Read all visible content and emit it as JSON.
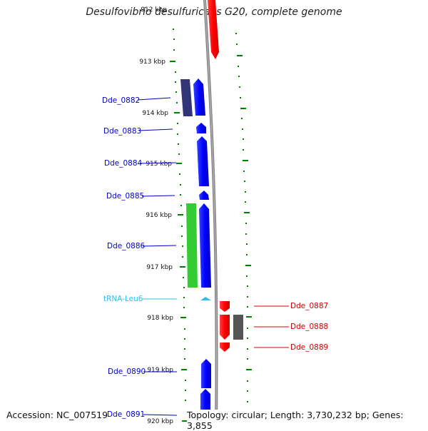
{
  "title": "Desulfovibrio desulfuricans G20, complete genome",
  "footer": {
    "accession": "Accession: NC_007519",
    "summary": "Topology: circular; Length: 3,730,232 bp; Genes: 3,855"
  },
  "colors": {
    "forward_gene": "#0000ff",
    "reverse_gene": "#ff0000",
    "pseudo_forward": "#333377",
    "pseudo_reverse": "#555555",
    "rna": "#33cc33",
    "trna": "#33bbee",
    "ticks": "#008000",
    "backbone": "#888888"
  },
  "scale": {
    "unit": "kbp",
    "labels": [
      "912 kbp",
      "913 kbp",
      "914 kbp",
      "915 kbp",
      "916 kbp",
      "917 kbp",
      "918 kbp",
      "919 kbp",
      "920 kbp"
    ]
  },
  "left_labels": [
    "Dde_0882",
    "Dde_0883",
    "Dde_0884",
    "Dde_0885",
    "Dde_0886",
    "tRNA-Leu6",
    "Dde_0890",
    "Dde_0891"
  ],
  "right_labels": [
    "Dde_0887",
    "Dde_0888",
    "Dde_0889"
  ]
}
